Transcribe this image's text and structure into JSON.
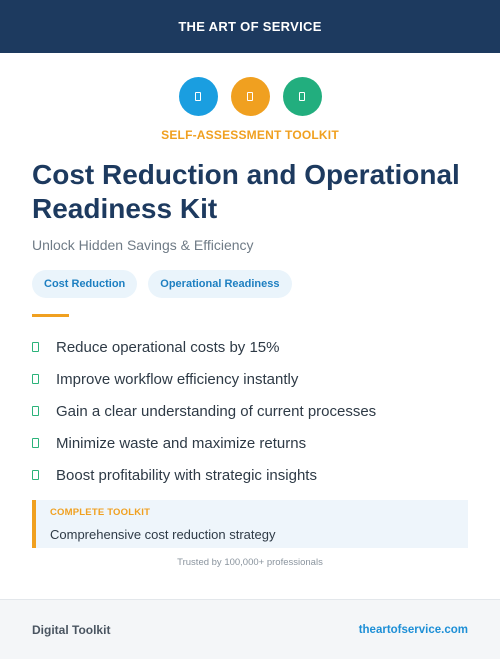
{
  "header": {
    "brand": "THE ART OF SERVICE"
  },
  "icons": [
    {
      "name": "toolkit-icon-1",
      "color": "#1a9ee0"
    },
    {
      "name": "toolkit-icon-2",
      "color": "#f0a020"
    },
    {
      "name": "toolkit-icon-3",
      "color": "#22ae7e"
    }
  ],
  "eyebrow": "SELF-ASSESSMENT TOOLKIT",
  "title": "Cost Reduction and Operational Readiness Kit",
  "subtitle": "Unlock Hidden Savings & Efficiency",
  "tags": [
    "Cost Reduction",
    "Operational Readiness"
  ],
  "benefits": [
    "Reduce operational costs by 15%",
    "Improve workflow efficiency instantly",
    "Gain a clear understanding of current processes",
    "Minimize waste and maximize returns",
    "Boost profitability with strategic insights"
  ],
  "callout": {
    "label": "COMPLETE TOOLKIT",
    "text": "Comprehensive cost reduction strategy"
  },
  "trust": "Trusted by 100,000+ professionals",
  "footer": {
    "left": "Digital Toolkit",
    "link": "theartofservice.com"
  },
  "colors": {
    "navy": "#1d3a5f",
    "accent_orange": "#f0a020",
    "check_green": "#2bb37a",
    "tag_blue": "#1d7fc1",
    "link_blue": "#1d8fd6"
  }
}
